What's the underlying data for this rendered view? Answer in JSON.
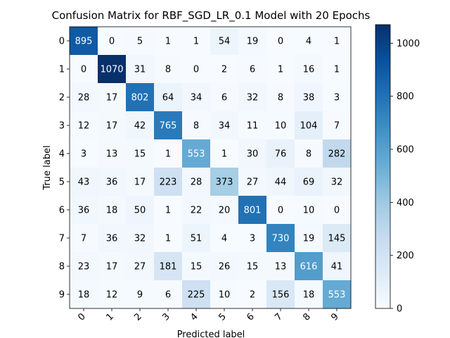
{
  "chart_data": {
    "type": "heatmap",
    "title": "Confusion Matrix for RBF_SGD_LR_0.1 Model with 20 Epochs",
    "xlabel": "Predicted label",
    "ylabel": "True label",
    "row_labels": [
      "0",
      "1",
      "2",
      "3",
      "4",
      "5",
      "6",
      "7",
      "8",
      "9"
    ],
    "col_labels": [
      "0",
      "1",
      "2",
      "3",
      "4",
      "5",
      "6",
      "7",
      "8",
      "9"
    ],
    "values": [
      [
        895,
        0,
        5,
        1,
        1,
        54,
        19,
        0,
        4,
        1
      ],
      [
        0,
        1070,
        31,
        8,
        0,
        2,
        6,
        1,
        16,
        1
      ],
      [
        28,
        17,
        802,
        64,
        34,
        6,
        32,
        8,
        38,
        3
      ],
      [
        12,
        17,
        42,
        765,
        8,
        34,
        11,
        10,
        104,
        7
      ],
      [
        3,
        13,
        15,
        1,
        553,
        1,
        30,
        76,
        8,
        282
      ],
      [
        43,
        36,
        17,
        223,
        28,
        373,
        27,
        44,
        69,
        32
      ],
      [
        36,
        18,
        50,
        1,
        22,
        20,
        801,
        0,
        10,
        0
      ],
      [
        7,
        36,
        32,
        1,
        51,
        4,
        3,
        730,
        19,
        145
      ],
      [
        23,
        17,
        27,
        181,
        15,
        26,
        15,
        13,
        616,
        41
      ],
      [
        18,
        12,
        9,
        6,
        225,
        10,
        2,
        156,
        18,
        553
      ]
    ],
    "colormap": "Blues",
    "vmin": 0,
    "vmax": 1070,
    "colorbar_ticks": [
      0,
      200,
      400,
      600,
      800,
      1000
    ]
  }
}
